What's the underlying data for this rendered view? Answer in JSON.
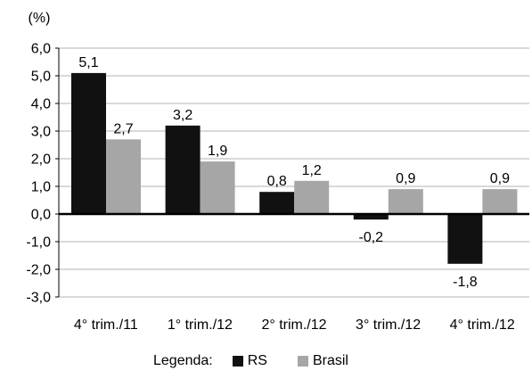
{
  "chart_data": {
    "type": "bar",
    "unit_label": "(%)",
    "categories": [
      "4° trim./11",
      "1° trim./12",
      "2° trim./12",
      "3° trim./12",
      "4° trim./12"
    ],
    "series": [
      {
        "name": "RS",
        "values": [
          5.1,
          3.2,
          0.8,
          -0.2,
          -1.8
        ],
        "labels": [
          "5,1",
          "3,2",
          "0,8",
          "-0,2",
          "-1,8"
        ],
        "color": "#111111"
      },
      {
        "name": "Brasil",
        "values": [
          2.7,
          1.9,
          1.2,
          0.9,
          0.9
        ],
        "labels": [
          "2,7",
          "1,9",
          "1,2",
          "0,9",
          "0,9"
        ],
        "color": "#a6a6a6"
      }
    ],
    "ylim": [
      -3,
      6
    ],
    "yticks": [
      6,
      5,
      4,
      3,
      2,
      1,
      0,
      -1,
      -2,
      -3
    ],
    "ytick_labels": [
      "6,0",
      "5,0",
      "4,0",
      "3,0",
      "2,0",
      "1,0",
      "0,0",
      "-1,0",
      "-2,0",
      "-3,0"
    ],
    "grid": true,
    "legend_position": "bottom"
  },
  "legend": {
    "title": "Legenda:",
    "items": [
      {
        "label": "RS",
        "color": "#111111"
      },
      {
        "label": "Brasil",
        "color": "#a6a6a6"
      }
    ]
  }
}
